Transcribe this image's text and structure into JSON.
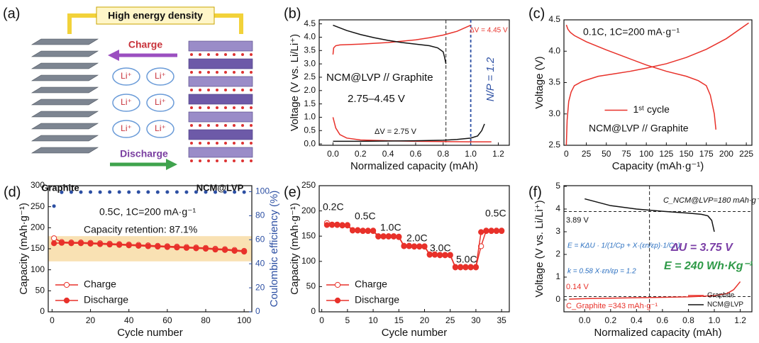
{
  "schematic": {
    "panel": "(a)",
    "banner": "High energy density",
    "charge": "Charge",
    "discharge": "Discharge",
    "ions": [
      "Li⁺",
      "Li⁺",
      "Li⁺",
      "Li⁺",
      "Li⁺",
      "Li⁺"
    ],
    "left_label": "Graphite",
    "right_label": "NCM@LVP"
  },
  "chart_data": [
    {
      "type": "line",
      "panel": "(b)",
      "x_label": "Normalized capacity (mAh)",
      "y_label": "Voltage (V vs. Li/Li⁺)",
      "xlim": [
        -0.1,
        1.28
      ],
      "ylim": [
        -0.05,
        4.65
      ],
      "xticks": [
        {
          "value": 0,
          "label": "0.0"
        },
        0.2,
        0.4,
        0.6,
        0.8,
        {
          "value": 1,
          "label": "1.0"
        },
        1.2
      ],
      "yticks": [
        {
          "value": 0,
          "label": "0.0"
        },
        0.5,
        {
          "value": 1,
          "label": "1.0"
        },
        1.5,
        {
          "value": 2,
          "label": "2.0"
        },
        2.5,
        {
          "value": 3,
          "label": "3.0"
        },
        3.5,
        {
          "value": 4,
          "label": "4.0"
        },
        4.5
      ],
      "vlines": [
        0.82,
        1.0
      ],
      "series": [
        {
          "color": "#e8312a",
          "x": [
            0,
            0.005,
            0.02,
            0.05,
            0.1,
            0.2,
            0.3,
            0.4,
            0.5,
            0.6,
            0.7,
            0.8,
            0.9,
            1.0
          ],
          "values": [
            3.35,
            3.6,
            3.68,
            3.71,
            3.72,
            3.74,
            3.77,
            3.8,
            3.85,
            3.9,
            3.98,
            4.08,
            4.22,
            4.45
          ]
        },
        {
          "color": "#111111",
          "x": [
            0,
            0.1,
            0.2,
            0.3,
            0.4,
            0.5,
            0.6,
            0.7,
            0.76,
            0.8,
            0.81,
            0.82
          ],
          "values": [
            4.45,
            4.25,
            4.1,
            3.98,
            3.88,
            3.8,
            3.74,
            3.68,
            3.6,
            3.45,
            3.25,
            3.0
          ]
        },
        {
          "color": "#e8312a",
          "x": [
            0,
            0.02,
            0.05,
            0.1,
            0.2,
            0.4,
            0.6,
            0.8,
            1.0,
            1.1,
            1.15
          ],
          "values": [
            1.0,
            0.6,
            0.35,
            0.22,
            0.15,
            0.12,
            0.1,
            0.09,
            0.08,
            0.08,
            0.08
          ]
        },
        {
          "color": "#111111",
          "x": [
            0,
            0.2,
            0.4,
            0.6,
            0.8,
            0.9,
            1.0,
            1.05,
            1.08,
            1.1
          ],
          "values": [
            0.1,
            0.1,
            0.11,
            0.12,
            0.14,
            0.17,
            0.22,
            0.3,
            0.5,
            0.75
          ]
        }
      ],
      "annotations": [
        "ΔV = 4.45 V",
        "ΔV = 2.75 V",
        "NCM@LVP // Graphite",
        "2.75–4.45 V",
        "N/P = 1.2"
      ]
    },
    {
      "type": "line",
      "panel": "(c)",
      "x_label": "Capacity (mAh·g⁻¹)",
      "y_label": "Voltage (V)",
      "xlim": [
        -3,
        232
      ],
      "ylim": [
        2.5,
        4.5
      ],
      "xticks": [
        0,
        25,
        50,
        75,
        100,
        125,
        150,
        175,
        200,
        225
      ],
      "yticks": [
        2.5,
        {
          "value": 3,
          "label": "3.0"
        },
        3.5,
        {
          "value": 4,
          "label": "4.0"
        },
        4.5
      ],
      "legend": "center",
      "series": [
        {
          "name": "1ˢᵗ cycle",
          "color": "#e8312a",
          "x": [
            0,
            1,
            3,
            6,
            10,
            20,
            40,
            60,
            80,
            100,
            125,
            150,
            175,
            200,
            228
          ],
          "values": [
            2.5,
            2.9,
            3.2,
            3.35,
            3.45,
            3.52,
            3.6,
            3.64,
            3.68,
            3.73,
            3.8,
            3.9,
            4.03,
            4.2,
            4.45
          ]
        },
        {
          "color": "#e8312a",
          "x": [
            0,
            2,
            5,
            10,
            25,
            50,
            75,
            100,
            125,
            150,
            165,
            175,
            180,
            185,
            187
          ],
          "values": [
            4.42,
            4.35,
            4.3,
            4.25,
            4.15,
            4.02,
            3.9,
            3.78,
            3.68,
            3.6,
            3.53,
            3.45,
            3.3,
            3.0,
            2.75
          ]
        }
      ],
      "annotations": [
        "0.1C, 1C=200 mA·g⁻¹",
        "NCM@LVP // Graphite"
      ]
    },
    {
      "type": "line",
      "panel": "(d)",
      "x_label": "Cycle number",
      "y_label": "Capacity (mAh·g⁻¹)",
      "y2_label": "Coulombic efficiency (%)",
      "xlim": [
        -2,
        104
      ],
      "ylim": [
        0,
        300
      ],
      "y2lim": [
        0,
        105
      ],
      "xticks": [
        0,
        20,
        40,
        60,
        80,
        100
      ],
      "yticks": [
        0,
        50,
        100,
        150,
        200,
        250,
        300
      ],
      "y2ticks": [
        0,
        20,
        40,
        60,
        80,
        100
      ],
      "band": [
        120,
        180
      ],
      "band_color": "#f7d9a0",
      "legend": "lower left",
      "x": [
        1,
        5,
        10,
        15,
        20,
        25,
        30,
        35,
        40,
        45,
        50,
        55,
        60,
        65,
        70,
        75,
        80,
        85,
        90,
        95,
        100
      ],
      "series": [
        {
          "name": "Charge",
          "color": "#e8312a",
          "marker": "open",
          "values": [
            175,
            166,
            165,
            165,
            164,
            163,
            162,
            161,
            160,
            159,
            158,
            157,
            156,
            155,
            154,
            153,
            152,
            150,
            149,
            147,
            145
          ]
        },
        {
          "name": "Discharge",
          "color": "#e8312a",
          "marker": "filled",
          "values": [
            163,
            164,
            163,
            163,
            162,
            161,
            160,
            159,
            158,
            157,
            156,
            155,
            154,
            153,
            152,
            151,
            150,
            148,
            147,
            145,
            143
          ]
        },
        {
          "color": "#2c4fa3",
          "marker": "dot",
          "axis": "y2",
          "values": [
            88,
            99.5,
            99.6,
            99.6,
            99.7,
            99.6,
            99.7,
            99.7,
            99.6,
            99.7,
            99.7,
            99.6,
            99.7,
            99.7,
            99.6,
            99.7,
            99.7,
            99.6,
            99.7,
            99.7,
            99.6
          ]
        }
      ],
      "annotations": [
        "0.5C, 1C=200 mA·g⁻¹",
        "Capacity retention: 87.1%"
      ]
    },
    {
      "type": "line",
      "panel": "(e)",
      "x_label": "Cycle number",
      "y_label": "Capacity (mAh·g⁻¹)",
      "xlim": [
        -0.5,
        36.5
      ],
      "ylim": [
        0,
        250
      ],
      "xticks": [
        0,
        5,
        10,
        15,
        20,
        25,
        30,
        35
      ],
      "yticks": [
        0,
        50,
        100,
        150,
        200,
        250
      ],
      "legend": "lower left",
      "x": [
        1,
        2,
        3,
        4,
        5,
        6,
        7,
        8,
        9,
        10,
        11,
        12,
        13,
        14,
        15,
        16,
        17,
        18,
        19,
        20,
        21,
        22,
        23,
        24,
        25,
        26,
        27,
        28,
        29,
        30,
        31,
        32,
        33,
        34,
        35
      ],
      "series": [
        {
          "name": "Charge",
          "color": "#e8312a",
          "marker": "open",
          "values": [
            176,
            173,
            173,
            172,
            172,
            162,
            162,
            161,
            161,
            161,
            150,
            150,
            150,
            150,
            149,
            131,
            131,
            130,
            130,
            130,
            114,
            114,
            113,
            113,
            113,
            89,
            89,
            89,
            89,
            89,
            130,
            161,
            161,
            161,
            161
          ]
        },
        {
          "name": "Discharge",
          "color": "#e8312a",
          "marker": "filled",
          "values": [
            172,
            172,
            172,
            171,
            171,
            161,
            161,
            160,
            160,
            160,
            149,
            149,
            149,
            149,
            148,
            130,
            130,
            129,
            129,
            129,
            113,
            113,
            112,
            112,
            112,
            88,
            88,
            88,
            88,
            88,
            158,
            160,
            160,
            160,
            160
          ]
        }
      ],
      "annotations": [
        "0.2C",
        "0.5C",
        "1.0C",
        "2.0C",
        "3.0C",
        "5.0C",
        "0.5C"
      ]
    },
    {
      "type": "line",
      "panel": "(f)",
      "x_label": "Normalized capacity (mAh)",
      "y_label": "Voltage (V vs. Li/Li⁺)",
      "xlim": [
        -0.16,
        1.29
      ],
      "ylim": [
        -0.53,
        5.03
      ],
      "xticks": [
        {
          "value": 0,
          "label": "0.0"
        },
        0.2,
        0.4,
        0.6,
        0.8,
        {
          "value": 1,
          "label": "1.0"
        },
        1.2
      ],
      "yticks": [
        0,
        1,
        2,
        3,
        4,
        5
      ],
      "legend": "lower right",
      "hlines": [
        3.89,
        0.14
      ],
      "vlines": [
        0.5
      ],
      "series": [
        {
          "name": "Graphite",
          "color": "#e8312a",
          "x": [
            -0.12,
            0,
            0.2,
            0.5,
            0.8,
            1.0,
            1.1,
            1.15,
            1.2
          ],
          "values": [
            0.03,
            0.05,
            0.07,
            0.1,
            0.13,
            0.18,
            0.28,
            0.45,
            0.8
          ]
        },
        {
          "name": "NCM@LVP",
          "color": "#111111",
          "x": [
            0,
            0.2,
            0.4,
            0.6,
            0.8,
            0.9,
            0.95,
            0.98,
            1.0
          ],
          "values": [
            4.45,
            4.15,
            4.0,
            3.9,
            3.82,
            3.77,
            3.7,
            3.5,
            3.0
          ]
        }
      ],
      "annotations": [
        "C_NCM@LVP=180 mAh·g⁻¹",
        "3.89 V",
        "0.14 V",
        "C_Graphite =343 mAh·g⁻¹",
        "E = KΔU · 1/(1/Cp + X·(εn/εp)·1/Cn)",
        "k = 0.58   X·εn/εp = 1.2",
        "ΔU = 3.75 V",
        "E = 240 Wh·Kg⁻¹"
      ]
    }
  ]
}
